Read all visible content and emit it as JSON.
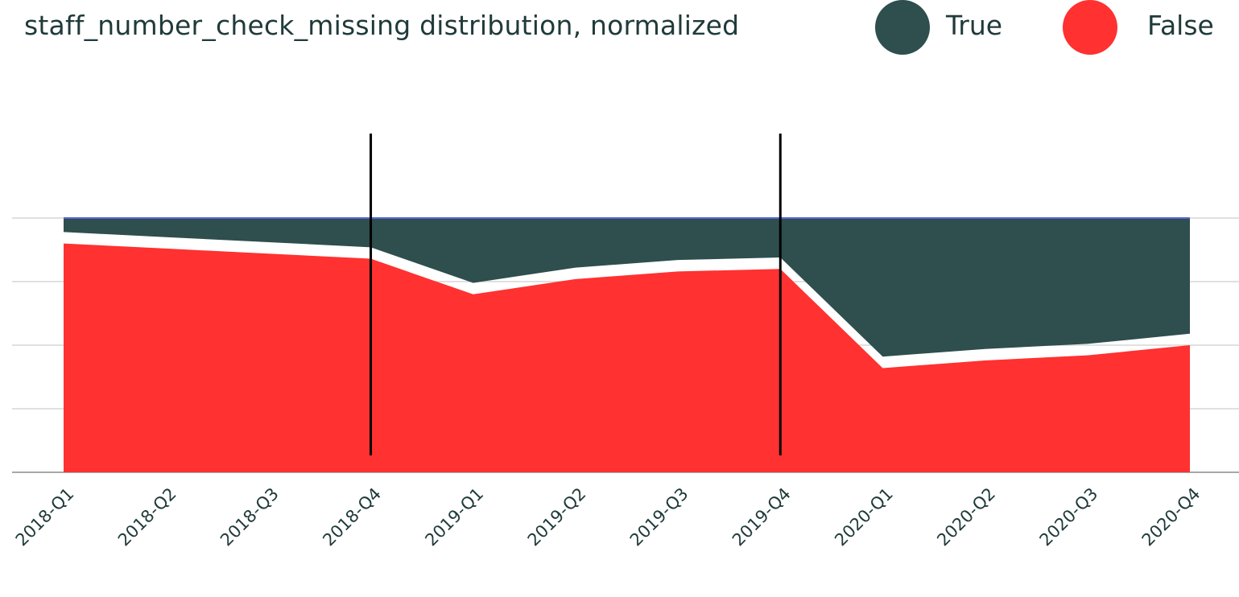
{
  "chart_data": {
    "type": "area",
    "stacked": true,
    "normalized": true,
    "title": "staff_number_check_missing distribution, normalized",
    "categories": [
      "2018-Q1",
      "2018-Q2",
      "2018-Q3",
      "2018-Q4",
      "2019-Q1",
      "2019-Q2",
      "2019-Q3",
      "2019-Q4",
      "2020-Q1",
      "2020-Q2",
      "2020-Q3",
      "2020-Q4"
    ],
    "series": [
      {
        "name": "False",
        "color": "#ff3131",
        "values": [
          0.9,
          0.88,
          0.86,
          0.84,
          0.7,
          0.76,
          0.79,
          0.8,
          0.41,
          0.44,
          0.46,
          0.5
        ]
      },
      {
        "name": "True",
        "color": "#2f4e4e",
        "values": [
          0.1,
          0.12,
          0.14,
          0.16,
          0.3,
          0.24,
          0.21,
          0.2,
          0.59,
          0.56,
          0.54,
          0.5
        ]
      }
    ],
    "markers": [
      "2018-Q4",
      "2019-Q4"
    ],
    "ylim": [
      0,
      1.25
    ],
    "grid": true,
    "legend_position": "top-right",
    "xlabel": "",
    "ylabel": ""
  }
}
